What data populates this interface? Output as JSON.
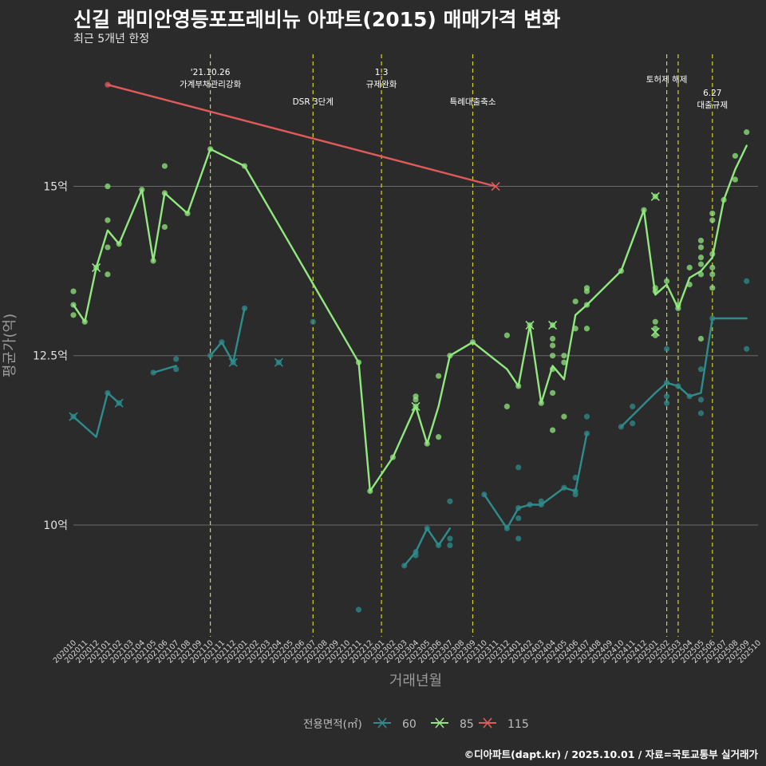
{
  "header": {
    "title": "신길 래미안영등포프레비뉴 아파트(2015) 매매가격 변화",
    "subtitle": "최근 5개년 한정"
  },
  "caption": "©디아파트(dapt.kr) / 2025.10.01 / 자료=국토교통부 실거래가",
  "colors": {
    "s60": "#2e8c8c",
    "s85": "#90e87e",
    "s115": "#e05a5a",
    "event": "#d4d42a",
    "grid": "#6a6a6a",
    "background": "#2b2b2b"
  },
  "chart_data": {
    "type": "line",
    "xlabel": "거래년월",
    "ylabel": "평균가(억)",
    "ylim": [
      8.35,
      16.95
    ],
    "yticks": [
      {
        "value": 10,
        "label": "10억"
      },
      {
        "value": 12.5,
        "label": "12.5억"
      },
      {
        "value": 15,
        "label": "15억"
      }
    ],
    "x_categories": [
      "202010",
      "202011",
      "202012",
      "202101",
      "202102",
      "202103",
      "202104",
      "202105",
      "202106",
      "202107",
      "202108",
      "202109",
      "202110",
      "202111",
      "202112",
      "202201",
      "202202",
      "202203",
      "202204",
      "202205",
      "202206",
      "202207",
      "202208",
      "202209",
      "202210",
      "202211",
      "202212",
      "202301",
      "202302",
      "202303",
      "202304",
      "202305",
      "202306",
      "202307",
      "202308",
      "202309",
      "202310",
      "202311",
      "202312",
      "202401",
      "202402",
      "202403",
      "202404",
      "202405",
      "202406",
      "202407",
      "202408",
      "202409",
      "202410",
      "202411",
      "202412",
      "202501",
      "202502",
      "202503",
      "202504",
      "202505",
      "202506",
      "202507",
      "202508",
      "202509",
      "202510"
    ],
    "legend": {
      "title": "전용면적(㎡)",
      "position": "bottom",
      "items": [
        "60",
        "85",
        "115"
      ]
    },
    "events": [
      {
        "month": "202110",
        "label": "'21.10.26\n가계부채관리강화",
        "row": "top"
      },
      {
        "month": "202207",
        "label": "DSR 3단계",
        "row": "low"
      },
      {
        "month": "202301",
        "label": "1.3\n규제완화",
        "row": "top"
      },
      {
        "month": "202309",
        "label": "특례대출축소",
        "row": "low"
      },
      {
        "month": "202502",
        "label": "토허제 해제",
        "row": "mid"
      },
      {
        "month": "202503",
        "label": "",
        "row": "mid"
      },
      {
        "month": "202506",
        "label": "6.27\n대출규제",
        "row": "low2"
      }
    ],
    "series": [
      {
        "name": "60",
        "segments": [
          [
            [
              "202010",
              11.6
            ],
            [
              "202012",
              11.3
            ],
            [
              "202101",
              11.95
            ],
            [
              "202102",
              11.8
            ]
          ],
          [
            [
              "202105",
              12.25
            ],
            [
              "202107",
              12.35
            ]
          ],
          [
            [
              "202110",
              12.5
            ],
            [
              "202111",
              12.7
            ],
            [
              "202112",
              12.4
            ],
            [
              "202201",
              13.2
            ]
          ],
          [
            [
              "202303",
              9.4
            ],
            [
              "202304",
              9.6
            ],
            [
              "202305",
              9.95
            ],
            [
              "202306",
              9.7
            ],
            [
              "202307",
              9.95
            ]
          ],
          [
            [
              "202310",
              10.45
            ],
            [
              "202312",
              9.95
            ],
            [
              "202401",
              10.25
            ],
            [
              "202402",
              10.3
            ],
            [
              "202403",
              10.3
            ],
            [
              "202405",
              10.55
            ],
            [
              "202406",
              10.5
            ],
            [
              "202407",
              11.35
            ]
          ],
          [
            [
              "202410",
              11.45
            ],
            [
              "202501",
              11.95
            ],
            [
              "202502",
              12.1
            ],
            [
              "202503",
              12.05
            ],
            [
              "202504",
              11.9
            ],
            [
              "202505",
              11.95
            ],
            [
              "202506",
              13.05
            ],
            [
              "202509",
              13.05
            ]
          ]
        ],
        "points": [
          [
            202010,
            11.6
          ],
          [
            202101,
            11.95
          ],
          [
            202102,
            11.8
          ],
          [
            202105,
            12.25
          ],
          [
            202107,
            12.45
          ],
          [
            202107,
            12.3
          ],
          [
            202110,
            12.5
          ],
          [
            202111,
            12.7
          ],
          [
            202112,
            12.4
          ],
          [
            202201,
            13.2
          ],
          [
            202204,
            12.4
          ],
          [
            202207,
            13.0
          ],
          [
            202211,
            8.75
          ],
          [
            202303,
            9.4
          ],
          [
            202304,
            9.6
          ],
          [
            202304,
            9.55
          ],
          [
            202305,
            9.95
          ],
          [
            202306,
            9.7
          ],
          [
            202307,
            10.35
          ],
          [
            202307,
            9.8
          ],
          [
            202307,
            9.7
          ],
          [
            202310,
            10.45
          ],
          [
            202312,
            9.95
          ],
          [
            202401,
            10.25
          ],
          [
            202401,
            10.1
          ],
          [
            202401,
            9.8
          ],
          [
            202401,
            10.85
          ],
          [
            202402,
            10.3
          ],
          [
            202403,
            10.3
          ],
          [
            202403,
            10.35
          ],
          [
            202405,
            10.55
          ],
          [
            202406,
            10.5
          ],
          [
            202406,
            10.7
          ],
          [
            202406,
            10.45
          ],
          [
            202407,
            11.35
          ],
          [
            202407,
            11.6
          ],
          [
            202410,
            11.45
          ],
          [
            202411,
            11.5
          ],
          [
            202411,
            11.75
          ],
          [
            202502,
            12.1
          ],
          [
            202502,
            11.9
          ],
          [
            202502,
            11.8
          ],
          [
            202502,
            12.6
          ],
          [
            202503,
            12.05
          ],
          [
            202504,
            11.9
          ],
          [
            202505,
            11.85
          ],
          [
            202505,
            11.65
          ],
          [
            202505,
            12.3
          ],
          [
            202506,
            13.05
          ],
          [
            202509,
            12.6
          ],
          [
            202509,
            13.6
          ]
        ],
        "x_markers": [
          [
            "202010",
            11.6
          ],
          [
            "202102",
            11.8
          ],
          [
            "202112",
            12.4
          ],
          [
            "202204",
            12.4
          ]
        ]
      },
      {
        "name": "85",
        "segments": [
          [
            [
              "202010",
              13.25
            ],
            [
              "202011",
              13.0
            ],
            [
              "202012",
              13.8
            ],
            [
              "202101",
              14.35
            ],
            [
              "202102",
              14.15
            ],
            [
              "202104",
              14.95
            ],
            [
              "202105",
              13.9
            ],
            [
              "202106",
              14.9
            ],
            [
              "202108",
              14.6
            ],
            [
              "202110",
              15.55
            ],
            [
              "202201",
              15.3
            ],
            [
              "202211",
              12.4
            ],
            [
              "202212",
              10.5
            ],
            [
              "202302",
              11.0
            ],
            [
              "202304",
              11.75
            ],
            [
              "202305",
              11.2
            ],
            [
              "202306",
              11.75
            ],
            [
              "202307",
              12.5
            ],
            [
              "202309",
              12.7
            ],
            [
              "202312",
              12.3
            ],
            [
              "202401",
              12.05
            ],
            [
              "202402",
              12.95
            ],
            [
              "202403",
              11.8
            ],
            [
              "202404",
              12.35
            ],
            [
              "202405",
              12.15
            ],
            [
              "202406",
              13.1
            ],
            [
              "202407",
              13.25
            ],
            [
              "202410",
              13.75
            ],
            [
              "202412",
              14.65
            ],
            [
              "202501",
              13.4
            ],
            [
              "202502",
              13.55
            ],
            [
              "202503",
              13.2
            ],
            [
              "202504",
              13.65
            ],
            [
              "202505",
              13.75
            ],
            [
              "202506",
              13.95
            ],
            [
              "202507",
              14.8
            ],
            [
              "202508",
              15.25
            ],
            [
              "202509",
              15.6
            ]
          ]
        ],
        "points": [
          [
            202010,
            13.45
          ],
          [
            202010,
            13.1
          ],
          [
            202010,
            13.25
          ],
          [
            202011,
            13.0
          ],
          [
            202012,
            13.8
          ],
          [
            202101,
            15.0
          ],
          [
            202101,
            14.5
          ],
          [
            202101,
            14.1
          ],
          [
            202101,
            13.7
          ],
          [
            202102,
            14.15
          ],
          [
            202104,
            14.95
          ],
          [
            202105,
            13.9
          ],
          [
            202106,
            15.3
          ],
          [
            202106,
            14.4
          ],
          [
            202106,
            14.9
          ],
          [
            202108,
            14.6
          ],
          [
            202110,
            15.55
          ],
          [
            202201,
            15.3
          ],
          [
            202211,
            12.4
          ],
          [
            202212,
            10.5
          ],
          [
            202302,
            11.0
          ],
          [
            202304,
            11.75
          ],
          [
            202304,
            11.9
          ],
          [
            202304,
            11.85
          ],
          [
            202305,
            11.2
          ],
          [
            202306,
            11.3
          ],
          [
            202306,
            12.2
          ],
          [
            202307,
            12.5
          ],
          [
            202309,
            12.7
          ],
          [
            202312,
            12.8
          ],
          [
            202312,
            11.75
          ],
          [
            202401,
            12.05
          ],
          [
            202402,
            12.95
          ],
          [
            202403,
            11.8
          ],
          [
            202404,
            12.95
          ],
          [
            202404,
            12.75
          ],
          [
            202404,
            12.65
          ],
          [
            202404,
            12.5
          ],
          [
            202404,
            12.3
          ],
          [
            202404,
            11.4
          ],
          [
            202404,
            11.95
          ],
          [
            202405,
            12.5
          ],
          [
            202405,
            12.4
          ],
          [
            202405,
            11.6
          ],
          [
            202406,
            13.3
          ],
          [
            202406,
            12.9
          ],
          [
            202407,
            13.5
          ],
          [
            202407,
            13.45
          ],
          [
            202407,
            13.25
          ],
          [
            202407,
            12.9
          ],
          [
            202410,
            13.75
          ],
          [
            202412,
            14.65
          ],
          [
            202501,
            14.85
          ],
          [
            202501,
            13.5
          ],
          [
            202501,
            13.45
          ],
          [
            202501,
            13.0
          ],
          [
            202501,
            12.9
          ],
          [
            202501,
            12.8
          ],
          [
            202502,
            13.6
          ],
          [
            202503,
            13.25
          ],
          [
            202503,
            13.2
          ],
          [
            202504,
            13.8
          ],
          [
            202504,
            13.55
          ],
          [
            202505,
            14.2
          ],
          [
            202505,
            14.1
          ],
          [
            202505,
            13.95
          ],
          [
            202505,
            13.85
          ],
          [
            202505,
            13.7
          ],
          [
            202505,
            12.75
          ],
          [
            202506,
            14.6
          ],
          [
            202506,
            14.5
          ],
          [
            202506,
            14.0
          ],
          [
            202506,
            13.8
          ],
          [
            202506,
            13.7
          ],
          [
            202506,
            13.5
          ],
          [
            202507,
            14.8
          ],
          [
            202508,
            15.45
          ],
          [
            202508,
            15.1
          ],
          [
            202509,
            15.8
          ]
        ],
        "x_markers": [
          [
            "202012",
            13.8
          ],
          [
            "202402",
            12.95
          ],
          [
            "202404",
            12.95
          ],
          [
            "202304",
            11.75
          ],
          [
            "202501",
            14.85
          ],
          [
            "202501",
            12.85
          ]
        ]
      },
      {
        "name": "115",
        "segments": [
          [
            [
              "202101",
              16.5
            ],
            [
              "202311",
              15.0
            ]
          ]
        ],
        "points": [
          [
            202101,
            16.5
          ]
        ],
        "x_markers": [
          [
            "202311",
            15.0
          ]
        ]
      }
    ]
  }
}
